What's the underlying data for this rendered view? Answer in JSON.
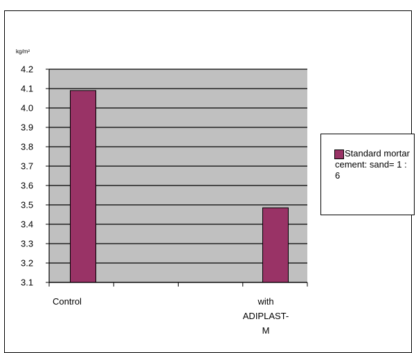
{
  "chart_data": {
    "type": "bar",
    "y_unit_label": "kg/m²",
    "categories": [
      "Control",
      "with ADIPLAST-M"
    ],
    "category_label_lines": [
      [
        "Control"
      ],
      [
        "with",
        "ADIPLAST-",
        "M"
      ]
    ],
    "series": [
      {
        "name": "Standard mortar cement: sand= 1 : 6",
        "values": [
          4.09,
          3.485
        ]
      }
    ],
    "ylim": [
      3.1,
      4.2
    ],
    "yticks": [
      "4.2",
      "4.1",
      "4.0",
      "3.9",
      "3.8",
      "3.7",
      "3.6",
      "3.5",
      "3.4",
      "3.3",
      "3.2",
      "3.1"
    ],
    "grid": true,
    "legend_position": "right",
    "colors": {
      "bar": "#993366",
      "plot_bg": "#c0c0c0"
    }
  }
}
